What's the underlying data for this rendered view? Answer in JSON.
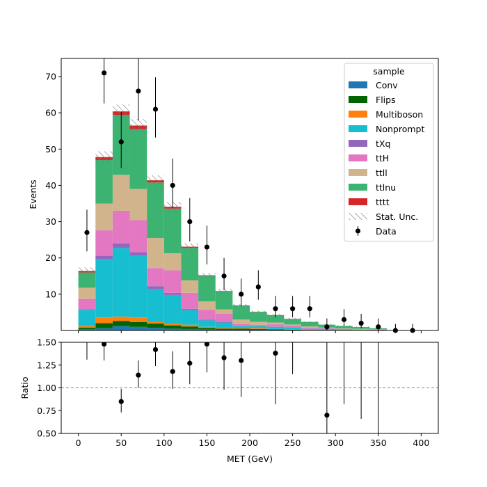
{
  "chart_data": {
    "type": "bar",
    "subtype": "stacked-histogram-with-ratio",
    "bin_edges": [
      0,
      20,
      40,
      60,
      80,
      100,
      120,
      140,
      160,
      180,
      200,
      220,
      240,
      260,
      280,
      300,
      320,
      340,
      360,
      380,
      400
    ],
    "xlabel": "MET (GeV)",
    "xlim": [
      -20,
      420
    ],
    "x_ticks": [
      0,
      50,
      100,
      150,
      200,
      250,
      300,
      350,
      400
    ],
    "main": {
      "ylabel": "Events",
      "ylim": [
        0,
        75
      ],
      "y_ticks": [
        10,
        20,
        30,
        40,
        50,
        60,
        70
      ],
      "series": [
        {
          "name": "Conv",
          "color": "#1f77b4",
          "values": [
            0.4,
            0.6,
            1.2,
            1.0,
            0.7,
            0.5,
            0.4,
            0.3,
            0.2,
            0.2,
            0.2,
            0.1,
            0.1,
            0.05,
            0.05,
            0.05,
            0.05,
            0,
            0,
            0
          ]
        },
        {
          "name": "Flips",
          "color": "#006400",
          "values": [
            0.4,
            1.4,
            1.4,
            1.3,
            1.2,
            0.9,
            0.7,
            0.4,
            0.3,
            0.3,
            0.2,
            0.2,
            0.1,
            0.1,
            0.05,
            0.05,
            0.05,
            0,
            0,
            0
          ]
        },
        {
          "name": "Multiboson",
          "color": "#ff7f0e",
          "values": [
            0.4,
            1.6,
            1.2,
            1.3,
            0.5,
            0.4,
            0.5,
            0.3,
            0.2,
            0.2,
            0.2,
            0.1,
            0.1,
            0.1,
            0.05,
            0.05,
            0.05,
            0,
            0,
            0
          ]
        },
        {
          "name": "Nonprompt",
          "color": "#17becf",
          "values": [
            4.5,
            16.0,
            19.0,
            17.0,
            9.0,
            8.0,
            4.0,
            1.8,
            1.5,
            0.5,
            0.6,
            0.6,
            0.5,
            0.2,
            0.3,
            0.2,
            0.1,
            0.1,
            0,
            0
          ]
        },
        {
          "name": "tXq",
          "color": "#9467bd",
          "values": [
            0.2,
            1.0,
            1.2,
            1.0,
            0.8,
            0.6,
            0.4,
            0.2,
            0.1,
            0.1,
            0.1,
            0.1,
            0.05,
            0.05,
            0.05,
            0,
            0,
            0,
            0,
            0
          ]
        },
        {
          "name": "ttH",
          "color": "#e377c2",
          "values": [
            2.8,
            7.0,
            9.0,
            8.8,
            5.0,
            6.2,
            4.4,
            2.7,
            2.3,
            0.5,
            0.3,
            0.6,
            0.4,
            0.3,
            0.2,
            0.1,
            0.1,
            0.1,
            0,
            0
          ]
        },
        {
          "name": "ttll",
          "color": "#d2b48c",
          "values": [
            3.1,
            7.4,
            9.9,
            8.6,
            8.3,
            4.7,
            3.4,
            2.3,
            1.2,
            1.2,
            0.8,
            0.5,
            0.4,
            0.3,
            0.1,
            0.1,
            0.1,
            0.1,
            0,
            0
          ]
        },
        {
          "name": "ttlnu",
          "color": "#3cb371",
          "values": [
            4.2,
            12.0,
            16.5,
            16.5,
            15.3,
            12.3,
            9.0,
            7.0,
            5.0,
            3.8,
            2.7,
            2.0,
            1.5,
            1.2,
            0.8,
            0.7,
            0.5,
            0.3,
            0.1,
            0.05
          ]
        },
        {
          "name": "tttt",
          "color": "#d62728",
          "values": [
            0.4,
            0.8,
            1.0,
            1.0,
            0.6,
            0.5,
            0.3,
            0.2,
            0.1,
            0.1,
            0.05,
            0.05,
            0.05,
            0.05,
            0,
            0,
            0,
            0,
            0,
            0
          ]
        }
      ],
      "stat_unc": {
        "name": "Stat. Unc.",
        "values": [
          1.0,
          1.6,
          1.9,
          1.8,
          1.4,
          1.3,
          0.9,
          0.6,
          0.5,
          0.4,
          0.3,
          0.3,
          0.3,
          0.2,
          0.2,
          0.15,
          0.15,
          0.1,
          0.05,
          0.05
        ]
      },
      "data": {
        "name": "Data",
        "x": [
          10,
          30,
          50,
          70,
          90,
          110,
          130,
          150,
          170,
          190,
          210,
          230,
          250,
          270,
          290,
          310,
          330,
          350,
          370,
          390
        ],
        "y": [
          27,
          71,
          52,
          66,
          61,
          40,
          30,
          23,
          15,
          10,
          12,
          6,
          6,
          6,
          1,
          3,
          2,
          1,
          0,
          0
        ],
        "yerr_low": [
          5.2,
          8.4,
          7.2,
          8.1,
          7.8,
          6.3,
          5.5,
          4.8,
          3.9,
          3.2,
          3.5,
          2.4,
          2.4,
          2.4,
          1.0,
          1.7,
          1.4,
          1.0,
          0,
          0
        ],
        "yerr_high": [
          6.3,
          9.5,
          8.2,
          9.2,
          8.8,
          7.4,
          6.5,
          5.9,
          5.0,
          4.3,
          4.6,
          3.5,
          3.5,
          3.5,
          2.3,
          2.9,
          2.6,
          2.3,
          1.8,
          1.8
        ]
      }
    },
    "legend": {
      "title": "sample",
      "placement": "top-right"
    },
    "ratio": {
      "ylabel": "Ratio",
      "ylim": [
        0.5,
        1.5
      ],
      "y_ticks": [
        0.5,
        0.75,
        1.0,
        1.25,
        1.5
      ],
      "y_tick_labels": [
        "0.50",
        "0.75",
        "1.00",
        "1.25",
        "1.50"
      ],
      "reference_line": 1.0,
      "x": [
        10,
        30,
        50,
        70,
        90,
        110,
        130,
        150,
        170,
        190,
        230,
        290
      ],
      "values": [
        1.55,
        1.48,
        0.85,
        1.14,
        1.42,
        1.18,
        1.27,
        1.48,
        1.33,
        1.3,
        1.38,
        0.7
      ],
      "err_low": [
        0.24,
        0.18,
        0.12,
        0.14,
        0.18,
        0.19,
        0.23,
        0.31,
        0.35,
        0.4,
        0.56,
        0.7
      ],
      "err_high": [
        0.28,
        0.2,
        0.14,
        0.16,
        0.21,
        0.22,
        0.25,
        0.37,
        0.44,
        0.55,
        0.8,
        1.6
      ],
      "extra_error_bars": [
        {
          "x": 250,
          "low": 1.15,
          "high": 1.6
        },
        {
          "x": 310,
          "low": 0.82,
          "high": 1.6
        },
        {
          "x": 330,
          "low": 0.66,
          "high": 1.6
        },
        {
          "x": 350,
          "low": 0.5,
          "high": 1.6
        }
      ]
    }
  }
}
